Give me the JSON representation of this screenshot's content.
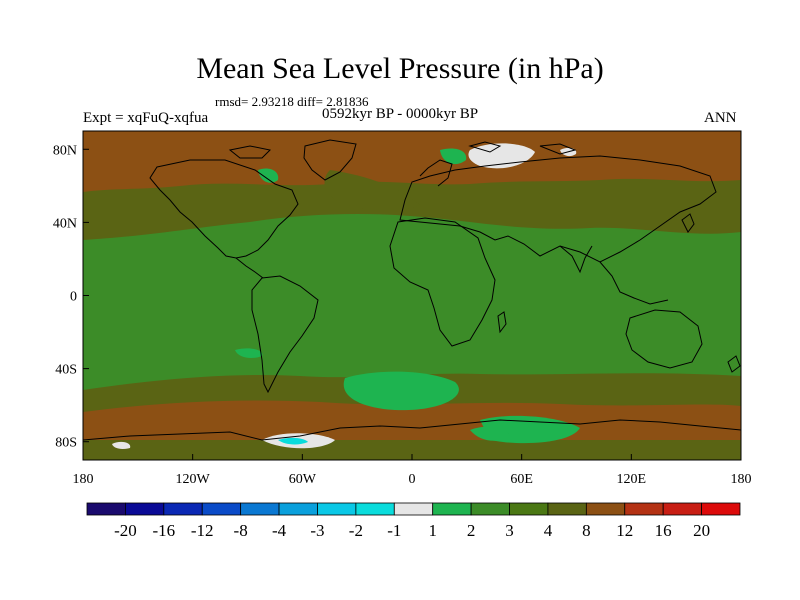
{
  "title": "Mean Sea Level Pressure (in hPa)",
  "stats": {
    "text": "rmsd= 2.93218 diff= 2.81836"
  },
  "left_label": "Expt = xqFuQ-xqfua",
  "center_label": "0592kyr BP - 0000kyr BP",
  "right_label": "ANN",
  "lat_ticks": [
    "80N",
    "40N",
    "0",
    "40S",
    "80S"
  ],
  "lon_ticks": [
    "180",
    "120W",
    "60W",
    "0",
    "60E",
    "120E",
    "180"
  ],
  "colorbar": {
    "labels": [
      "-20",
      "-16",
      "-12",
      "-8",
      "-4",
      "-3",
      "-2",
      "-1",
      "1",
      "2",
      "3",
      "4",
      "8",
      "12",
      "16",
      "20"
    ],
    "colors": [
      "#1a0a6e",
      "#0a0a96",
      "#0a28b4",
      "#0a4bc8",
      "#0a78d2",
      "#0aa0dc",
      "#0ac8e6",
      "#0adcdc",
      "#e6e6e6",
      "#1eb450",
      "#3c8c28",
      "#4b7814",
      "#5a6414",
      "#8c5014",
      "#b43214",
      "#c81e14",
      "#dc0a0a"
    ]
  },
  "map_colors": {
    "ocean": "#3c8c28",
    "positive_high": "#5a6414",
    "positive_higher": "#8c5014",
    "neg_light": "#1eb450",
    "ice": "#e6e6e6"
  }
}
